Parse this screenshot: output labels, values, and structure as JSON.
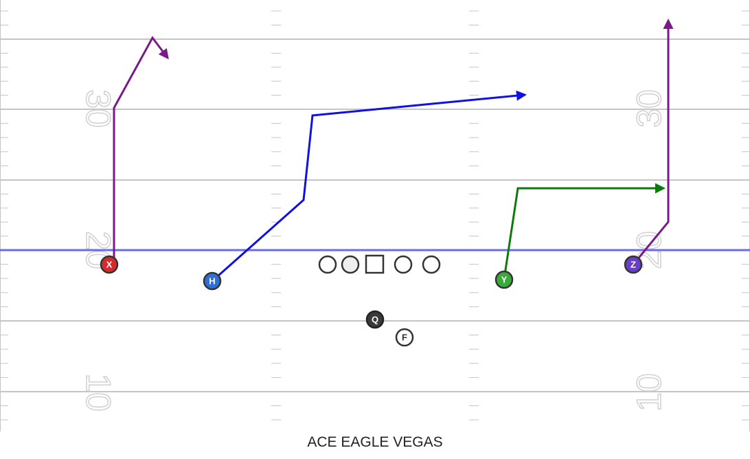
{
  "play": {
    "title": "ACE EAGLE VEGAS"
  },
  "field": {
    "yard_numbers": {
      "left": [
        "30",
        "20",
        "10"
      ],
      "right": [
        "30",
        "20",
        "10"
      ]
    },
    "colors": {
      "yard_line": "#c4c4c4",
      "hash": "#c4c4c4",
      "numbers_stroke": "#d0d0d0",
      "line_of_scrimmage": "#6b6bea"
    }
  },
  "offensive_line": [
    "circle",
    "circle",
    "square",
    "circle",
    "circle"
  ],
  "players": [
    {
      "id": "X",
      "label": "X",
      "fill": "#d62b2b"
    },
    {
      "id": "H",
      "label": "H",
      "fill": "#2f6fd6"
    },
    {
      "id": "Y",
      "label": "Y",
      "fill": "#3aaa3a"
    },
    {
      "id": "Z",
      "label": "Z",
      "fill": "#6a3fc8"
    },
    {
      "id": "Q",
      "label": "Q",
      "fill": "#3a3a3a"
    },
    {
      "id": "F",
      "label": "F",
      "fill": "#ffffff"
    }
  ],
  "routes": [
    {
      "player": "X",
      "color": "#7a1a8a"
    },
    {
      "player": "H",
      "color": "#1010e0"
    },
    {
      "player": "Y",
      "color": "#0a7a0a"
    },
    {
      "player": "Z",
      "color": "#7a1a8a"
    }
  ]
}
